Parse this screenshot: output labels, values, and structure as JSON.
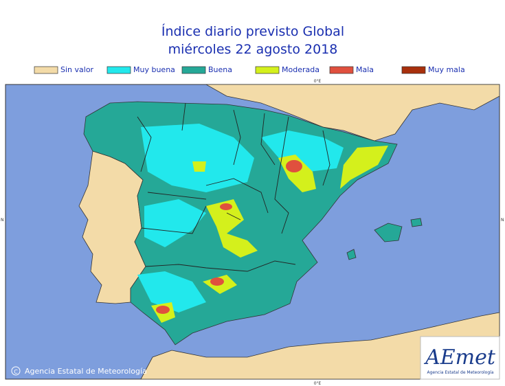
{
  "title": [
    "Índice diario previsto Global",
    "miércoles 22 agosto 2018"
  ],
  "legend": [
    {
      "label": "Sin valor",
      "color": "#f3dba8"
    },
    {
      "label": "Muy buena",
      "color": "#22e8ec"
    },
    {
      "label": "Buena",
      "color": "#25a897"
    },
    {
      "label": "Moderada",
      "color": "#d4f01c"
    },
    {
      "label": "Mala",
      "color": "#e0503e"
    },
    {
      "label": "Muy mala",
      "color": "#a8300c"
    }
  ],
  "graticule": {
    "top": "0°E",
    "bottom": "0°E",
    "left": "N",
    "right": "N"
  },
  "credit": "Agencia Estatal de Meteorología",
  "logo": {
    "name": "AEmet",
    "subtitle": "Agencia Estatal de Meteorología"
  }
}
